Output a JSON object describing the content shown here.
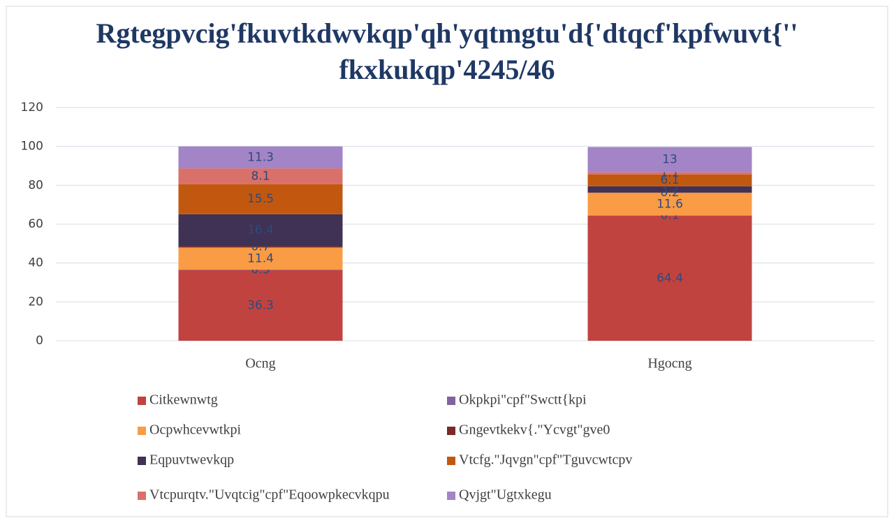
{
  "chart_data": {
    "type": "stacked_bar",
    "title": [
      "Rgtegpvcig'fkuvtkdwvkqp'qh'yqtmgtu'd{'dtqcf'kpfwuvt{''",
      "fkxkukqp'4245/46"
    ],
    "categories": [
      "Ocng",
      "Hgocng"
    ],
    "series": [
      {
        "name": "Citkewnwtg",
        "color": "#c0433f",
        "values": [
          36.3,
          64.4
        ]
      },
      {
        "name": "Okpkpi\"cpf\"Swctt{kpi",
        "color": "#8064a2",
        "values": [
          0.3,
          0.1
        ]
      },
      {
        "name": "Ocpwhcevwtkpi",
        "color": "#f99c45",
        "values": [
          11.4,
          11.6
        ]
      },
      {
        "name": "Gngevtkekv{.\"Ycvgt\"gve0",
        "color": "#7b2a2a",
        "values": [
          0.7,
          0.2
        ]
      },
      {
        "name": "Eqpuvtwevkqp",
        "color": "#3f3254",
        "values": [
          16.4,
          3.2
        ]
      },
      {
        "name": "Vtcfg.\"Jqvgn\"cpf\"Tguvcwtcpv",
        "color": "#c2580f",
        "values": [
          15.5,
          6.1
        ]
      },
      {
        "name": "Vtcpurqtv.\"Uvqtcig\"cpf\"Eqoowpkecvkqpu",
        "color": "#d9706a",
        "values": [
          8.1,
          1.1
        ]
      },
      {
        "name": "Qvjgt\"Ugtxkegu",
        "color": "#a384c6",
        "values": [
          11.3,
          13
        ]
      }
    ],
    "ylim": [
      0,
      120
    ],
    "yticks": [
      0,
      20,
      40,
      60,
      80,
      100,
      120
    ],
    "grid": true
  }
}
